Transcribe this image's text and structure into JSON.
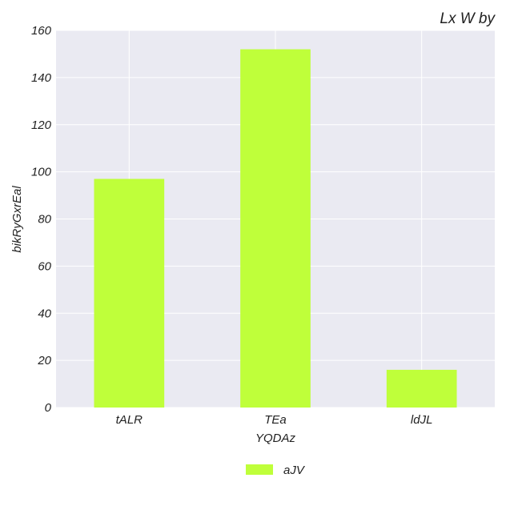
{
  "chart_data": {
    "type": "bar",
    "title": "Lx W by",
    "xlabel": "YQDAz",
    "ylabel": "bikRyGxrEal",
    "categories": [
      "tALR",
      "TEa",
      "ldJL"
    ],
    "series": [
      {
        "name": "aJV",
        "values": [
          97,
          152,
          16
        ],
        "color": "#bfff3a"
      }
    ],
    "ylim": [
      0,
      160
    ],
    "yticks": [
      0,
      20,
      40,
      60,
      80,
      100,
      120,
      140,
      160
    ],
    "grid": true,
    "legend_position": "bottom-center",
    "plot_background": "#eaeaf2",
    "grid_color": "#ffffff"
  }
}
